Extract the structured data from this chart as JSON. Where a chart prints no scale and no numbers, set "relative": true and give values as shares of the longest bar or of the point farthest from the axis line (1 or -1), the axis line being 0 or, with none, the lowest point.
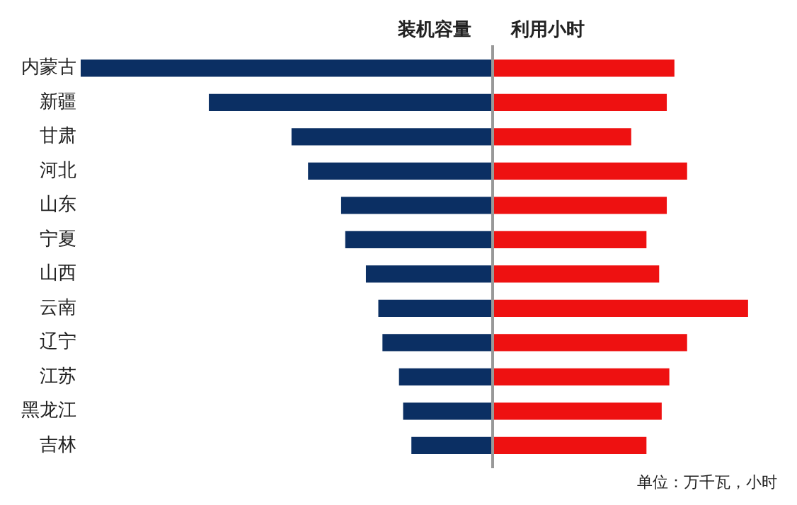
{
  "chart_data": [
    {
      "type": "bar",
      "orientation": "horizontal",
      "relative": true,
      "categories": [
        "内蒙古",
        "新疆",
        "甘肃",
        "河北",
        "山东",
        "宁夏",
        "山西",
        "云南",
        "辽宁",
        "江苏",
        "黑龙江",
        "吉林"
      ],
      "series": [
        {
          "name": "装机容量",
          "color": "#0b2f63",
          "values": [
            -1,
            -0.69,
            -0.49,
            -0.45,
            -0.37,
            -0.36,
            -0.31,
            -0.28,
            -0.27,
            -0.23,
            -0.22,
            -0.2
          ]
        }
      ],
      "grid": false,
      "legend": false
    },
    {
      "type": "bar",
      "orientation": "horizontal",
      "relative": true,
      "tick_labels": false,
      "categories": [
        null,
        null,
        null,
        null,
        null,
        null,
        null,
        null,
        null,
        null,
        null,
        null
      ],
      "series": [
        {
          "name": "利用小时",
          "color": "#ee1111",
          "values": [
            0.71,
            0.68,
            0.54,
            0.76,
            0.68,
            0.6,
            0.65,
            1,
            0.76,
            0.69,
            0.66,
            0.6
          ]
        }
      ],
      "annotations": [
        "单位：万千瓦，小时"
      ],
      "grid": false,
      "legend": false
    }
  ]
}
